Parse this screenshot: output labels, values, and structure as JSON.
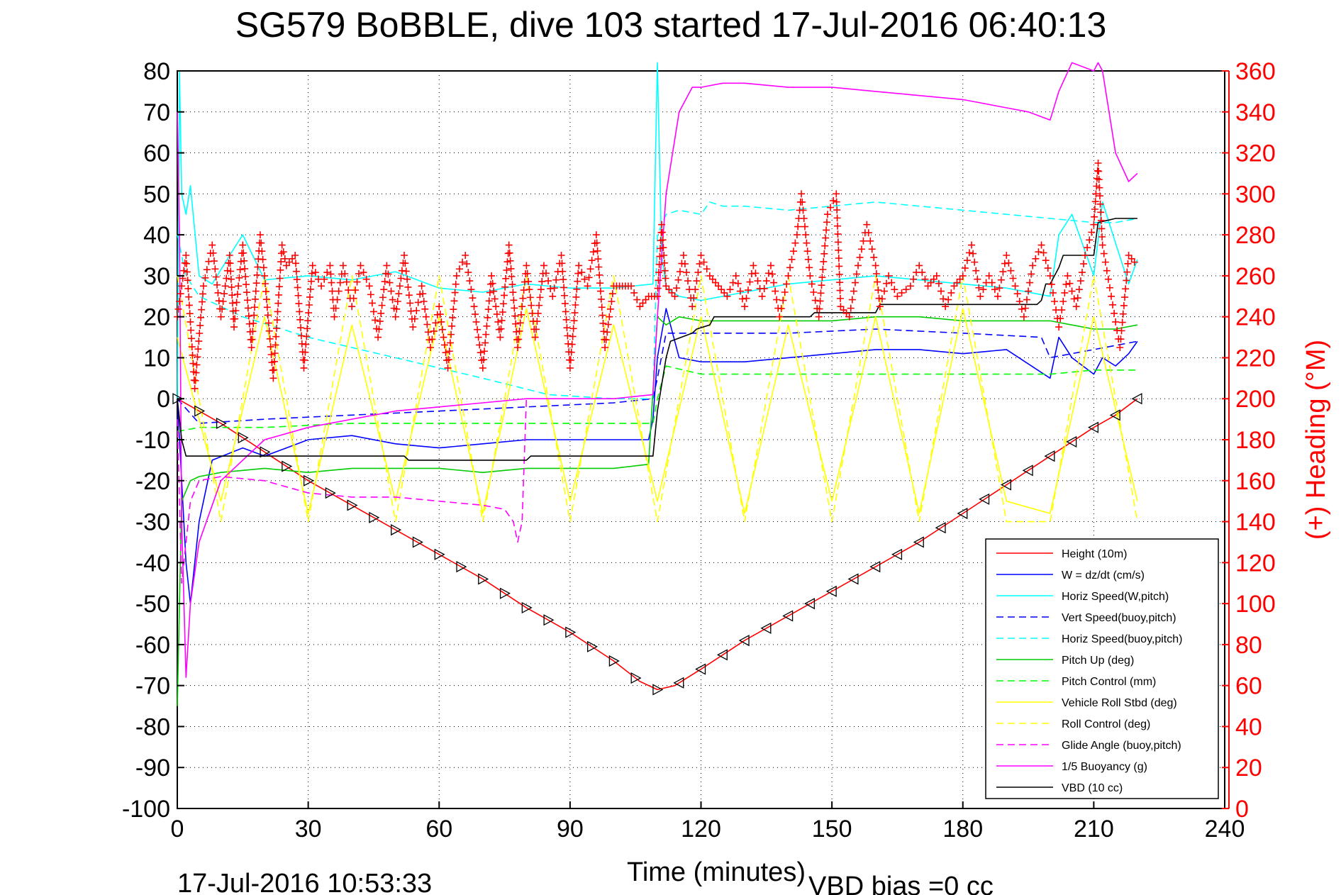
{
  "chart_data": {
    "type": "line",
    "title": "SG579 BoBBLE, dive 103 started 17-Jul-2016 06:40:13",
    "xlabel": "Time (minutes)",
    "ylabel_right": "(+) Heading (°M)",
    "footer_left": "17-Jul-2016 10:53:33",
    "footer_right": "VBD bias =0 cc",
    "xlim": [
      0,
      240
    ],
    "ylim": [
      -100,
      80
    ],
    "ylim_right": [
      0,
      360
    ],
    "xticks": [
      "0",
      "30",
      "60",
      "90",
      "120",
      "150",
      "180",
      "210",
      "240"
    ],
    "yticks": [
      "80",
      "70",
      "60",
      "50",
      "40",
      "30",
      "20",
      "10",
      "0",
      "-10",
      "-20",
      "-30",
      "-40",
      "-50",
      "-60",
      "-70",
      "-80",
      "-90",
      "-100"
    ],
    "yticks_right": [
      "360",
      "340",
      "320",
      "300",
      "280",
      "260",
      "240",
      "220",
      "200",
      "180",
      "160",
      "140",
      "120",
      "100",
      "80",
      "60",
      "40",
      "20",
      "0"
    ],
    "legend_position": "bottom-right",
    "series": [
      {
        "name": "Height (10m)",
        "color": "#ff0000",
        "dash": "solid",
        "x": [
          0,
          10,
          20,
          30,
          40,
          50,
          60,
          70,
          80,
          90,
          100,
          106,
          110,
          114,
          120,
          130,
          140,
          150,
          160,
          170,
          180,
          190,
          200,
          210,
          215,
          220
        ],
        "y": [
          0,
          -6,
          -13,
          -20,
          -26,
          -32,
          -38,
          -44,
          -51,
          -57,
          -64,
          -69,
          -71,
          -70,
          -66,
          -59,
          -53,
          -47,
          -41,
          -35,
          -28,
          -21,
          -14,
          -7,
          -4,
          0
        ]
      },
      {
        "name": "W = dz/dt (cm/s)",
        "color": "#0000ff",
        "dash": "solid",
        "x": [
          0,
          1,
          2,
          3,
          5,
          8,
          15,
          20,
          25,
          30,
          40,
          50,
          60,
          70,
          80,
          90,
          100,
          108,
          109,
          110,
          112,
          115,
          120,
          130,
          140,
          150,
          160,
          170,
          180,
          190,
          200,
          202,
          205,
          210,
          212,
          215,
          218,
          220
        ],
        "y": [
          0,
          -20,
          -40,
          -50,
          -30,
          -15,
          -12,
          -14,
          -12,
          -10,
          -9,
          -11,
          -12,
          -11,
          -10,
          -10,
          -10,
          -10,
          -5,
          10,
          22,
          10,
          9,
          9,
          10,
          11,
          12,
          12,
          11,
          12,
          5,
          15,
          10,
          6,
          10,
          8,
          11,
          14
        ]
      },
      {
        "name": "Horiz Speed(W,pitch)",
        "color": "#00ffff",
        "dash": "solid",
        "x": [
          0,
          0.5,
          1,
          2,
          3,
          5,
          8,
          12,
          15,
          20,
          30,
          40,
          50,
          60,
          70,
          80,
          90,
          100,
          109,
          110,
          111,
          112,
          115,
          120,
          130,
          140,
          150,
          160,
          170,
          180,
          190,
          200,
          202,
          205,
          210,
          212,
          215,
          218,
          220
        ],
        "y": [
          0,
          80,
          50,
          45,
          52,
          30,
          28,
          35,
          40,
          29,
          30,
          29,
          31,
          27,
          26,
          28,
          27,
          27,
          28,
          82,
          35,
          27,
          25,
          24,
          26,
          28,
          29,
          30,
          29,
          28,
          27,
          25,
          40,
          45,
          30,
          48,
          38,
          28,
          34
        ]
      },
      {
        "name": "Vert Speed(buoy,pitch)",
        "color": "#0000ff",
        "dash": "dashed",
        "x": [
          0,
          5,
          20,
          40,
          60,
          80,
          100,
          109,
          110,
          112,
          120,
          140,
          160,
          180,
          198,
          200,
          210,
          220
        ],
        "y": [
          0,
          -6,
          -5,
          -4,
          -3,
          -2,
          -1,
          0,
          5,
          16,
          16,
          16,
          17,
          16,
          15,
          10,
          12,
          14
        ]
      },
      {
        "name": "Horiz Speed(buoy,pitch)",
        "color": "#00ffff",
        "dash": "dashed",
        "x": [
          0,
          2,
          5,
          15,
          30,
          50,
          70,
          85,
          100,
          109,
          110,
          112,
          115,
          120,
          122,
          125,
          130,
          140,
          160,
          180,
          200,
          210,
          215,
          220
        ],
        "y": [
          40,
          30,
          25,
          20,
          15,
          10,
          5,
          1,
          0,
          0,
          40,
          45,
          46,
          45,
          48,
          47,
          47,
          46,
          48,
          46,
          44,
          43,
          43,
          44
        ]
      },
      {
        "name": "Pitch Up (deg)",
        "color": "#00cc00",
        "dash": "solid",
        "x": [
          0,
          1,
          3,
          5,
          10,
          20,
          30,
          40,
          50,
          60,
          70,
          80,
          90,
          100,
          108,
          110,
          112,
          115,
          120,
          130,
          140,
          150,
          160,
          170,
          180,
          190,
          200,
          205,
          210,
          215,
          220
        ],
        "y": [
          -75,
          -25,
          -20,
          -19,
          -18,
          -17,
          -18,
          -17,
          -17,
          -17,
          -18,
          -17,
          -17,
          -17,
          -16,
          20,
          18,
          20,
          19,
          19,
          19,
          19,
          20,
          20,
          19,
          19,
          19,
          18,
          17,
          17,
          18
        ]
      },
      {
        "name": "Pitch Control (mm)",
        "color": "#00ff00",
        "dash": "dashed",
        "x": [
          0,
          5,
          20,
          40,
          60,
          80,
          100,
          109,
          110,
          112,
          120,
          140,
          160,
          180,
          200,
          210,
          220
        ],
        "y": [
          -8,
          -7,
          -7,
          -6,
          -6,
          -6,
          -6,
          -6,
          0,
          8,
          6,
          6,
          6,
          6,
          6,
          7,
          7
        ]
      },
      {
        "name": "Vehicle Roll Stbd (deg)",
        "color": "#ffff00",
        "dash": "solid",
        "x": [
          0,
          10,
          20,
          30,
          40,
          50,
          60,
          70,
          80,
          90,
          100,
          110,
          120,
          130,
          140,
          150,
          160,
          170,
          180,
          190,
          200,
          210,
          220
        ],
        "y": [
          15,
          -25,
          20,
          -28,
          18,
          -25,
          20,
          -28,
          22,
          -25,
          18,
          -25,
          20,
          -28,
          18,
          -25,
          20,
          -28,
          22,
          -25,
          -28,
          20,
          -25
        ]
      },
      {
        "name": "Roll Control (deg)",
        "color": "#ffff00",
        "dash": "dashed",
        "x": [
          0,
          10,
          20,
          30,
          40,
          50,
          60,
          70,
          80,
          90,
          100,
          110,
          120,
          130,
          140,
          150,
          160,
          170,
          180,
          190,
          200,
          210,
          220
        ],
        "y": [
          30,
          -30,
          30,
          -30,
          30,
          -30,
          30,
          -30,
          30,
          -30,
          30,
          -30,
          30,
          -30,
          30,
          -30,
          30,
          -30,
          30,
          -30,
          -30,
          30,
          -30
        ]
      },
      {
        "name": "Glide Angle (buoy,pitch)",
        "color": "#ff00ff",
        "dash": "dashed",
        "x": [
          0,
          1,
          3,
          5,
          10,
          20,
          30,
          40,
          50,
          60,
          70,
          75,
          77,
          78,
          79,
          80
        ],
        "y": [
          -5,
          -45,
          -25,
          -20,
          -19,
          -20,
          -23,
          -24,
          -24,
          -25,
          -26,
          -27,
          -30,
          -35,
          -30,
          0
        ]
      },
      {
        "name": "1/5 Buoyancy (g)",
        "color": "#ff00ff",
        "dash": "solid",
        "x": [
          0,
          0.5,
          1,
          2,
          3,
          5,
          10,
          15,
          20,
          30,
          40,
          50,
          60,
          70,
          80,
          90,
          100,
          109,
          110,
          112,
          115,
          118,
          120,
          125,
          130,
          140,
          150,
          160,
          170,
          180,
          190,
          195,
          200,
          202,
          205,
          210,
          211,
          212,
          215,
          218,
          220
        ],
        "y": [
          70,
          40,
          -30,
          -68,
          -50,
          -35,
          -20,
          -15,
          -10,
          -7,
          -5,
          -3,
          -2,
          -1,
          0,
          0,
          0,
          1,
          20,
          50,
          70,
          76,
          76,
          77,
          77,
          76,
          76,
          75,
          74,
          73,
          71,
          70,
          68,
          75,
          82,
          80,
          82,
          80,
          60,
          53,
          55
        ]
      },
      {
        "name": "VBD (10 cc)",
        "color": "#000000",
        "dash": "solid",
        "x": [
          0,
          1,
          2,
          30,
          52,
          53,
          80,
          81,
          109,
          110,
          112,
          113,
          118,
          119,
          122,
          123,
          145,
          146,
          160,
          161,
          197,
          198,
          198.5,
          199,
          200,
          201,
          202,
          203,
          210,
          211,
          215,
          219,
          220
        ],
        "y": [
          0,
          -10,
          -14,
          -14,
          -14,
          -15,
          -15,
          -14,
          -14,
          -3,
          10,
          14,
          16,
          17,
          18,
          20,
          20,
          21,
          21,
          23,
          23,
          24,
          26,
          28,
          28,
          30,
          32,
          35,
          35,
          43,
          44,
          44,
          44
        ]
      }
    ],
    "heading_series": {
      "name": "(+) Heading (°M)",
      "color": "#ff0000",
      "marker": "+",
      "axis": "right",
      "x": [
        0,
        2,
        4,
        6,
        8,
        10,
        12,
        13,
        15,
        17,
        19,
        20,
        22,
        24,
        25,
        27,
        29,
        31,
        33,
        35,
        36,
        38,
        40,
        42,
        44,
        46,
        48,
        50,
        52,
        54,
        56,
        58,
        60,
        62,
        64,
        66,
        68,
        70,
        72,
        74,
        76,
        78,
        80,
        82,
        84,
        86,
        88,
        90,
        92,
        94,
        96,
        98,
        100,
        102,
        104,
        106,
        108,
        110,
        111,
        112,
        114,
        116,
        118,
        120,
        122,
        124,
        126,
        128,
        130,
        132,
        134,
        136,
        138,
        140,
        142,
        143,
        145,
        147,
        149,
        151,
        152,
        154,
        156,
        158,
        160,
        161,
        163,
        165,
        168,
        170,
        172,
        174,
        176,
        178,
        180,
        182,
        184,
        186,
        188,
        190,
        192,
        194,
        196,
        198,
        200,
        202,
        204,
        206,
        208,
        210,
        211,
        212,
        214,
        216,
        218,
        220
      ],
      "y": [
        240,
        270,
        205,
        255,
        275,
        240,
        270,
        235,
        275,
        225,
        280,
        260,
        210,
        275,
        265,
        270,
        215,
        265,
        255,
        265,
        240,
        265,
        245,
        265,
        255,
        230,
        265,
        240,
        270,
        235,
        255,
        225,
        245,
        215,
        260,
        270,
        245,
        215,
        260,
        230,
        275,
        225,
        265,
        230,
        265,
        250,
        270,
        215,
        265,
        255,
        280,
        225,
        255,
        255,
        255,
        245,
        250,
        250,
        285,
        255,
        250,
        270,
        245,
        270,
        260,
        255,
        250,
        260,
        245,
        265,
        250,
        265,
        240,
        260,
        280,
        300,
        260,
        240,
        290,
        300,
        245,
        240,
        265,
        285,
        265,
        245,
        260,
        250,
        255,
        265,
        255,
        260,
        245,
        255,
        260,
        275,
        250,
        260,
        250,
        270,
        255,
        240,
        265,
        275,
        260,
        235,
        260,
        245,
        270,
        285,
        315,
        275,
        250,
        225,
        270,
        265
      ]
    }
  }
}
